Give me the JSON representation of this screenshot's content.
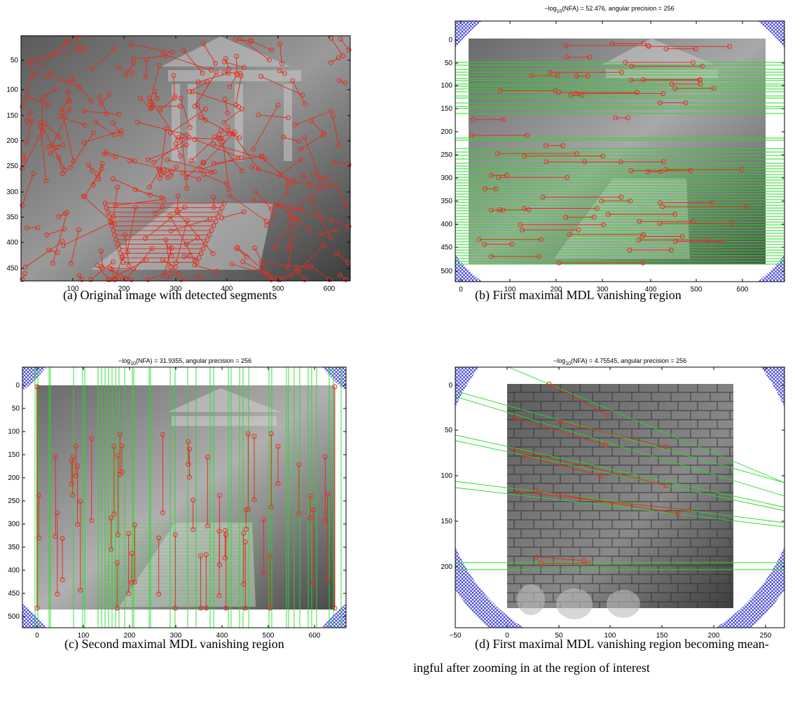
{
  "figure": {
    "panels": [
      {
        "id": "a",
        "title": "",
        "caption": "(a) Original image with detected segments",
        "x_ticks": [
          "100",
          "200",
          "300",
          "400",
          "500",
          "600"
        ],
        "y_ticks": [
          "50",
          "100",
          "150",
          "200",
          "250",
          "300",
          "350",
          "400",
          "450"
        ]
      },
      {
        "id": "b",
        "title": "−log10(NFA) = 52.476, angular precision = 256",
        "title_parts": {
          "prefix": "−log",
          "sub": "10",
          "suffix": "(NFA) = 52.476, angular precision = 256"
        },
        "caption": "(b) First maximal MDL vanishing region",
        "x_ticks": [
          "0",
          "100",
          "200",
          "300",
          "400",
          "500",
          "600"
        ],
        "y_ticks": [
          "0",
          "50",
          "100",
          "150",
          "200",
          "250",
          "300",
          "350",
          "400",
          "450",
          "500"
        ]
      },
      {
        "id": "c",
        "title": "−log10(NFA) = 31.9355, angular precision = 256",
        "title_parts": {
          "prefix": "−log",
          "sub": "10",
          "suffix": "(NFA) = 31.9355, angular precision = 256"
        },
        "caption": "(c) Second maximal MDL vanishing region",
        "x_ticks": [
          "0",
          "100",
          "200",
          "300",
          "400",
          "500",
          "600"
        ],
        "y_ticks": [
          "0",
          "50",
          "100",
          "150",
          "200",
          "250",
          "300",
          "350",
          "400",
          "450",
          "500"
        ]
      },
      {
        "id": "d",
        "title": "−log10(NFA) = 4.75545, angular precision = 256",
        "title_parts": {
          "prefix": "−log",
          "sub": "10",
          "suffix": "(NFA) = 4.75545, angular precision = 256"
        },
        "caption_line1": "(d) First maximal MDL vanishing region becoming mean-",
        "caption_line2": "ingful after zooming in at the region of interest",
        "x_ticks": [
          "−50",
          "0",
          "50",
          "100",
          "150",
          "200",
          "250"
        ],
        "y_ticks": [
          "0",
          "50",
          "100",
          "150",
          "200"
        ]
      }
    ]
  },
  "colors": {
    "segment": "#e0301e",
    "vanishing_line": "#22dd22",
    "region_hatch": "#1a1ad0",
    "axes": "#000000"
  }
}
